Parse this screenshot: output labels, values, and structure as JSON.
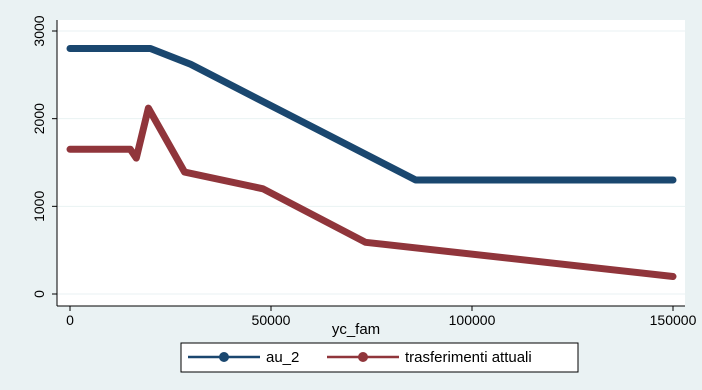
{
  "chart_data": {
    "type": "line",
    "xlabel": "yc_fam",
    "ylabel": "",
    "title": "",
    "xlim": [
      0,
      150000
    ],
    "ylim": [
      0,
      3000
    ],
    "x_ticks": [
      0,
      50000,
      100000,
      150000
    ],
    "y_ticks": [
      0,
      1000,
      2000,
      3000
    ],
    "grid": true,
    "legend_position": "bottom",
    "series": [
      {
        "name": "au_2",
        "color": "#1a476f",
        "points": [
          [
            0,
            2800
          ],
          [
            20000,
            2800
          ],
          [
            30000,
            2620
          ],
          [
            86000,
            1300
          ],
          [
            150000,
            1300
          ]
        ]
      },
      {
        "name": "trasferimenti attuali",
        "color": "#90353b",
        "points": [
          [
            0,
            1650
          ],
          [
            15000,
            1650
          ],
          [
            16500,
            1550
          ],
          [
            19500,
            2120
          ],
          [
            28500,
            1390
          ],
          [
            48000,
            1200
          ],
          [
            73500,
            590
          ],
          [
            150000,
            200
          ]
        ]
      }
    ]
  }
}
